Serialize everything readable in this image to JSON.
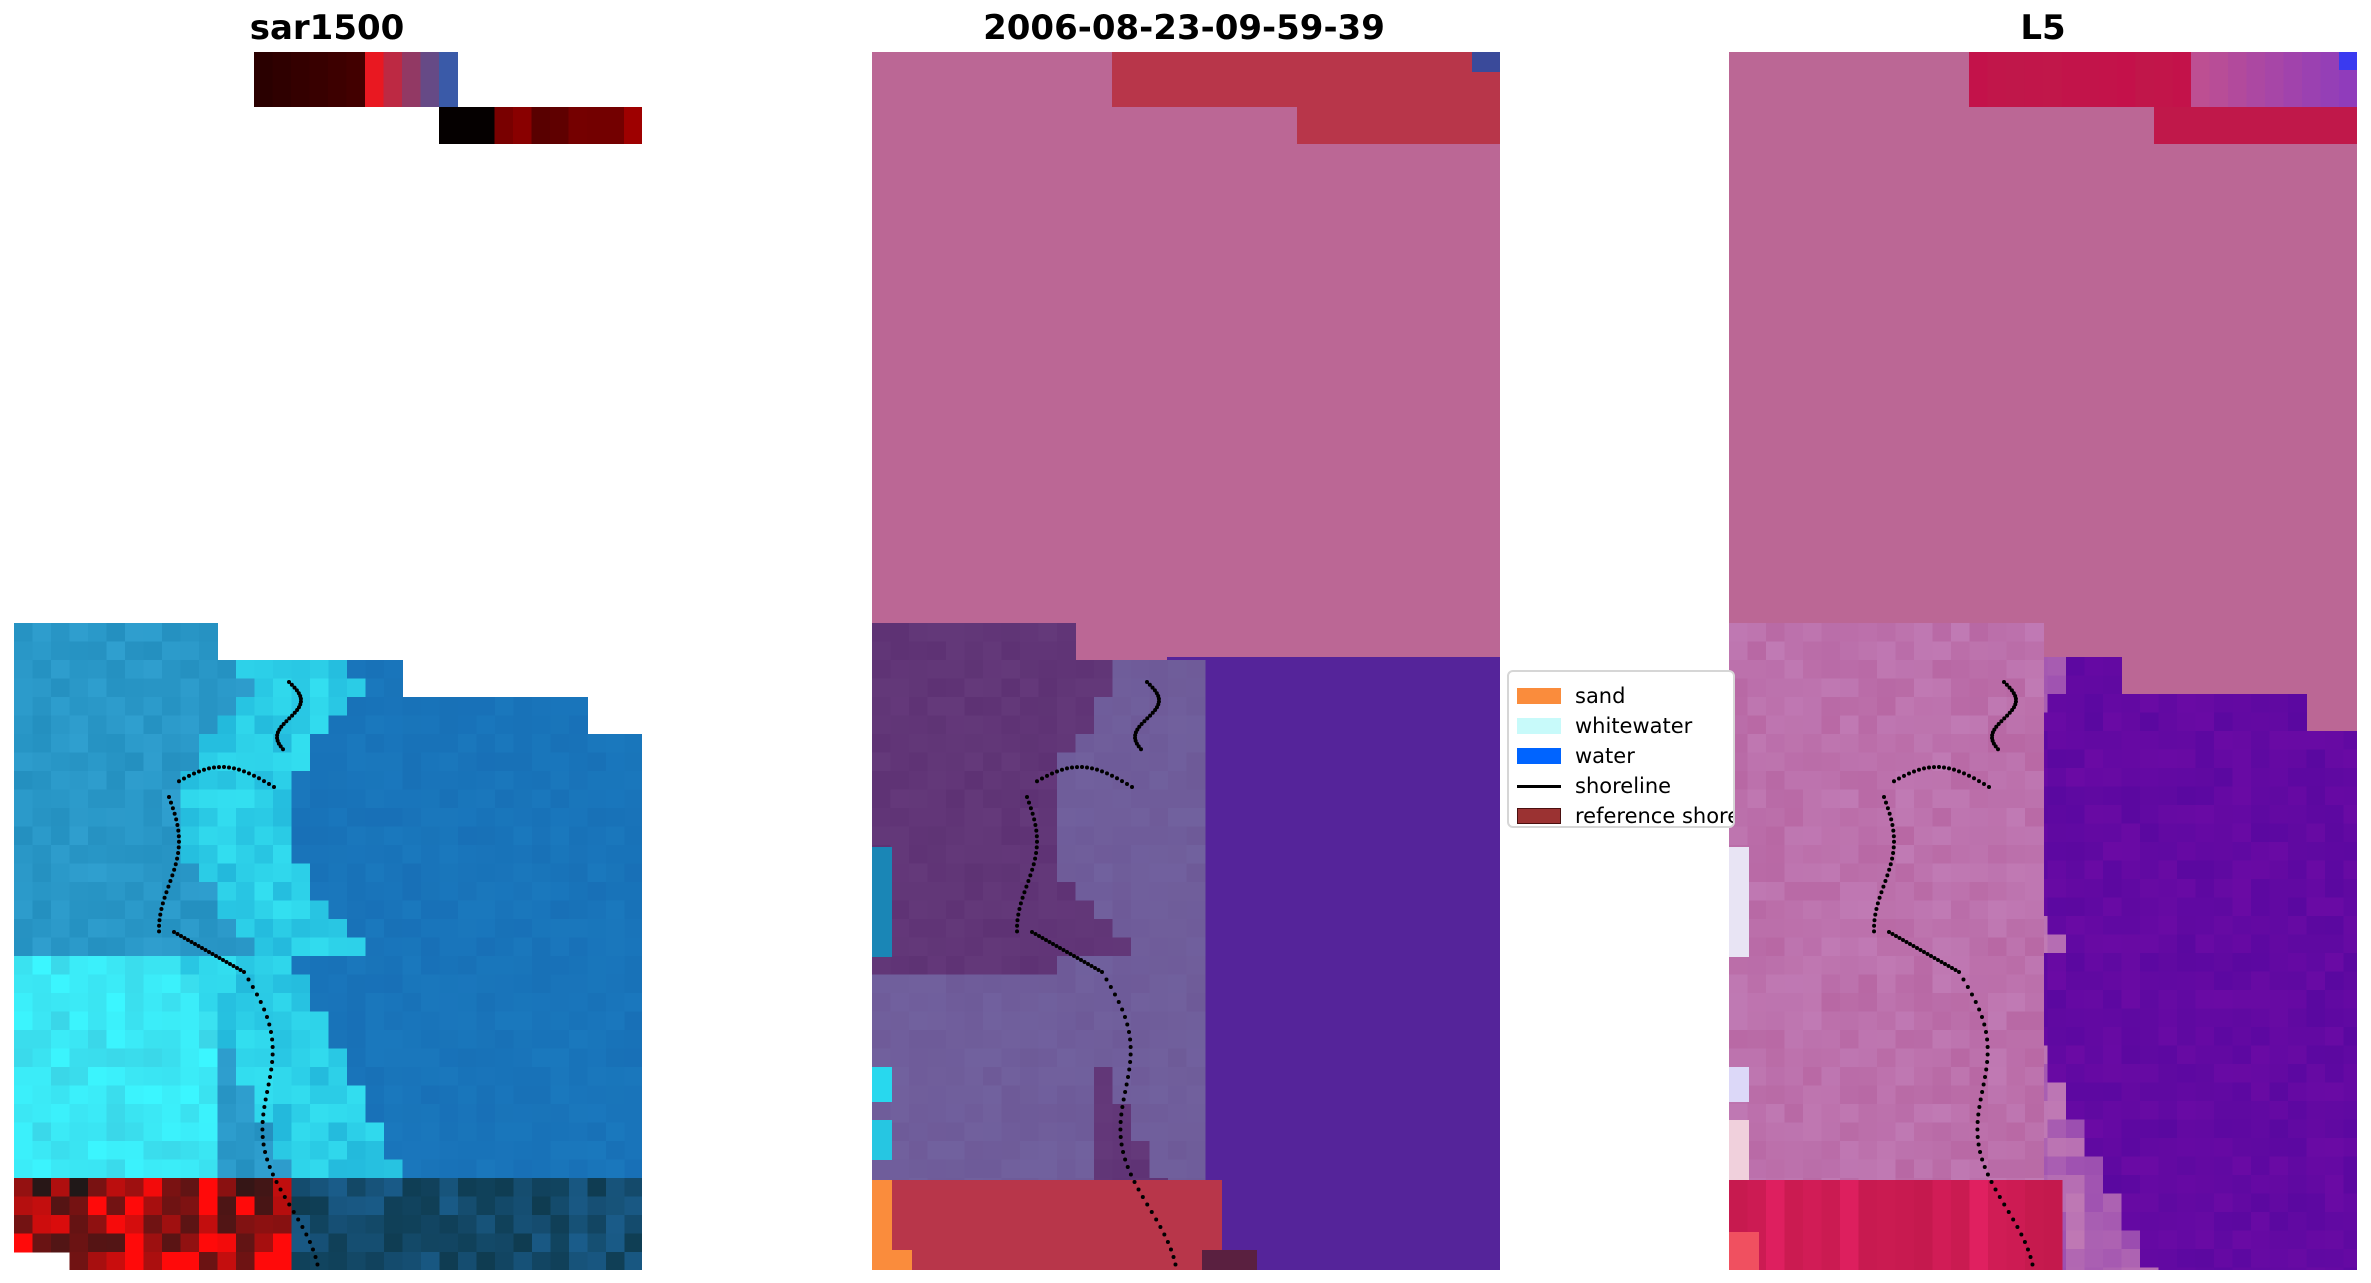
{
  "titles": [
    "sar1500",
    "2006-08-23-09-59-39",
    "L5"
  ],
  "legend": {
    "items": [
      {
        "label": "sand",
        "color": "#fa8c3c",
        "kind": "patch"
      },
      {
        "label": "whitewater",
        "color": "#c8fafa",
        "kind": "patch"
      },
      {
        "label": "water",
        "color": "#0064ff",
        "kind": "patch"
      },
      {
        "label": "shoreline",
        "color": "#000000",
        "kind": "line"
      },
      {
        "label": "reference shoreline",
        "color": "#9b3232",
        "kind": "patch"
      }
    ]
  },
  "colors": {
    "sar_water": "#1a78bd",
    "sar_nearshore": "#2f9fcf",
    "sar_surf": "#33dff0",
    "sar_dark": "#2a0000",
    "sar_red": "#ff0a0a",
    "class_land": "#bb6795",
    "class_mask": "#b8364a",
    "class_offshore": "#55249a",
    "class_nearshore": "#5e3274",
    "class_whitewater": "#71619e",
    "class_sand": "#fa8c3c",
    "class_water_edge": "#1a86b6",
    "l5_land": "#bb6795",
    "l5_red": "#c0184a",
    "l5_water": "#6a0aa4",
    "l5_surf": "#c07ab4",
    "l5_white": "#e8e4f4"
  }
}
